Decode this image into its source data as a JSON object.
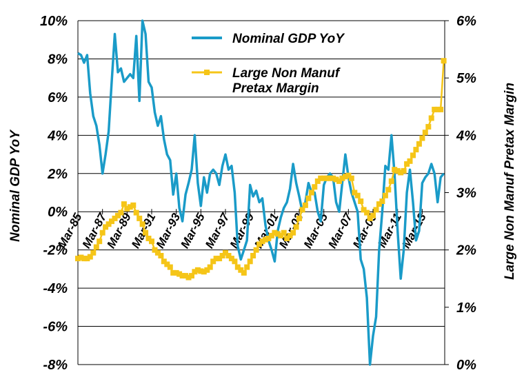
{
  "chart_data": {
    "type": "line",
    "xlabel": "",
    "ylabel_left": "Nominal GDP YoY",
    "ylabel_right": "Large Non Manuf Pretax Margin",
    "ylim_left": [
      -8,
      10
    ],
    "ylim_right": [
      0,
      6
    ],
    "y_ticks_left": [
      "-8%",
      "-6%",
      "-4%",
      "-2%",
      "0%",
      "2%",
      "4%",
      "6%",
      "8%",
      "10%"
    ],
    "y_ticks_right": [
      "0%",
      "1%",
      "2%",
      "3%",
      "4%",
      "5%",
      "6%"
    ],
    "x_ticks": [
      "Mar-85",
      "Mar-87",
      "Mar-89",
      "Mar-91",
      "Mar-93",
      "Mar-95",
      "Mar-97",
      "Mar-99",
      "Mar-01",
      "Mar-03",
      "Mar-05",
      "Mar-07",
      "Mar-09",
      "Mar-11",
      "Mar-13"
    ],
    "x_range": [
      1985.17,
      2015.0
    ],
    "grid": "horizontal",
    "legend_position": "top-center",
    "series": [
      {
        "name": "Nominal GDP YoY",
        "axis": "left",
        "color": "#1a9bc8",
        "marker": "none",
        "x": [
          1985.17,
          1985.42,
          1985.67,
          1985.92,
          1986.17,
          1986.42,
          1986.67,
          1986.92,
          1987.17,
          1987.42,
          1987.67,
          1987.92,
          1988.17,
          1988.42,
          1988.67,
          1988.92,
          1989.17,
          1989.42,
          1989.67,
          1989.92,
          1990.17,
          1990.42,
          1990.67,
          1990.92,
          1991.17,
          1991.42,
          1991.67,
          1991.92,
          1992.17,
          1992.42,
          1992.67,
          1992.92,
          1993.17,
          1993.42,
          1993.67,
          1993.92,
          1994.17,
          1994.42,
          1994.67,
          1994.92,
          1995.17,
          1995.42,
          1995.67,
          1995.92,
          1996.17,
          1996.42,
          1996.67,
          1996.92,
          1997.17,
          1997.42,
          1997.67,
          1997.92,
          1998.17,
          1998.42,
          1998.67,
          1998.92,
          1999.17,
          1999.42,
          1999.67,
          1999.92,
          2000.17,
          2000.42,
          2000.67,
          2000.92,
          2001.17,
          2001.42,
          2001.67,
          2001.92,
          2002.17,
          2002.42,
          2002.67,
          2002.92,
          2003.17,
          2003.42,
          2003.67,
          2003.92,
          2004.17,
          2004.42,
          2004.67,
          2004.92,
          2005.17,
          2005.42,
          2005.67,
          2005.92,
          2006.17,
          2006.42,
          2006.67,
          2006.92,
          2007.17,
          2007.42,
          2007.67,
          2007.92,
          2008.17,
          2008.42,
          2008.67,
          2008.92,
          2009.17,
          2009.42,
          2009.67,
          2009.92,
          2010.17,
          2010.42,
          2010.67,
          2010.92,
          2011.17,
          2011.42,
          2011.67,
          2011.92,
          2012.17,
          2012.42,
          2012.67,
          2012.92,
          2013.17,
          2013.42,
          2013.67,
          2013.92,
          2014.17,
          2014.42,
          2014.67,
          2014.92
        ],
        "y": [
          8.3,
          8.2,
          7.8,
          8.2,
          6.2,
          5.0,
          4.5,
          3.5,
          2.0,
          3.0,
          4.2,
          6.8,
          9.3,
          7.3,
          7.5,
          6.8,
          7.0,
          7.2,
          7.0,
          9.2,
          5.8,
          10.0,
          9.3,
          6.8,
          6.5,
          5.2,
          4.5,
          5.0,
          3.8,
          3.0,
          2.7,
          0.9,
          2.0,
          0.2,
          -0.5,
          0.9,
          1.5,
          2.2,
          4.0,
          1.5,
          0.3,
          1.8,
          1.0,
          2.0,
          2.2,
          2.0,
          1.4,
          2.4,
          3.0,
          2.2,
          2.4,
          1.0,
          -1.8,
          -2.5,
          -2.0,
          -1.5,
          1.4,
          0.8,
          1.1,
          0.5,
          0.7,
          -0.7,
          -1.5,
          -2.0,
          -2.6,
          -1.0,
          -0.3,
          0.2,
          0.5,
          1.2,
          2.5,
          1.5,
          0.8,
          0.0,
          0.5,
          1.5,
          1.0,
          1.0,
          0.0,
          -0.5,
          1.4,
          1.8,
          2.0,
          1.8,
          0.5,
          0.0,
          1.5,
          3.0,
          1.8,
          1.0,
          0.5,
          0.0,
          -2.5,
          -3.0,
          -4.5,
          -8.0,
          -6.5,
          -5.5,
          -2.0,
          0.0,
          2.4,
          2.2,
          4.0,
          2.0,
          -1.0,
          -3.5,
          -2.0,
          1.0,
          2.2,
          0.5,
          -1.5,
          -1.0,
          1.5,
          1.8,
          2.0,
          2.5,
          2.0,
          0.5,
          1.8,
          2.0
        ]
      },
      {
        "name": "Large Non Manuf Pretax Margin",
        "axis": "right",
        "color": "#f5c518",
        "marker": "square",
        "x": [
          1985.17,
          1985.42,
          1985.67,
          1985.92,
          1986.17,
          1986.42,
          1986.67,
          1986.92,
          1987.17,
          1987.42,
          1987.67,
          1987.92,
          1988.17,
          1988.42,
          1988.67,
          1988.92,
          1989.17,
          1989.42,
          1989.67,
          1989.92,
          1990.17,
          1990.42,
          1990.67,
          1990.92,
          1991.17,
          1991.42,
          1991.67,
          1991.92,
          1992.17,
          1992.42,
          1992.67,
          1992.92,
          1993.17,
          1993.42,
          1993.67,
          1993.92,
          1994.17,
          1994.42,
          1994.67,
          1994.92,
          1995.17,
          1995.42,
          1995.67,
          1995.92,
          1996.17,
          1996.42,
          1996.67,
          1996.92,
          1997.17,
          1997.42,
          1997.67,
          1997.92,
          1998.17,
          1998.42,
          1998.67,
          1998.92,
          1999.17,
          1999.42,
          1999.67,
          1999.92,
          2000.17,
          2000.42,
          2000.67,
          2000.92,
          2001.17,
          2001.42,
          2001.67,
          2001.92,
          2002.17,
          2002.42,
          2002.67,
          2002.92,
          2003.17,
          2003.42,
          2003.67,
          2003.92,
          2004.17,
          2004.42,
          2004.67,
          2004.92,
          2005.17,
          2005.42,
          2005.67,
          2005.92,
          2006.17,
          2006.42,
          2006.67,
          2006.92,
          2007.17,
          2007.42,
          2007.67,
          2007.92,
          2008.17,
          2008.42,
          2008.67,
          2008.92,
          2009.17,
          2009.42,
          2009.67,
          2009.92,
          2010.17,
          2010.42,
          2010.67,
          2010.92,
          2011.17,
          2011.42,
          2011.67,
          2011.92,
          2012.17,
          2012.42,
          2012.67,
          2012.92,
          2013.17,
          2013.42,
          2013.67,
          2013.92,
          2014.17,
          2014.42,
          2014.67,
          2014.92
        ],
        "y": [
          1.85,
          1.87,
          1.85,
          1.85,
          1.88,
          1.95,
          2.05,
          2.15,
          2.3,
          2.4,
          2.45,
          2.5,
          2.55,
          2.6,
          2.65,
          2.8,
          2.72,
          2.75,
          2.78,
          2.65,
          2.55,
          2.45,
          2.3,
          2.2,
          2.15,
          2.0,
          1.95,
          1.9,
          1.8,
          1.75,
          1.7,
          1.6,
          1.6,
          1.58,
          1.55,
          1.55,
          1.52,
          1.55,
          1.62,
          1.65,
          1.63,
          1.62,
          1.65,
          1.7,
          1.8,
          1.85,
          1.85,
          1.9,
          1.95,
          1.9,
          1.85,
          1.8,
          1.7,
          1.65,
          1.6,
          1.7,
          1.8,
          1.9,
          2.0,
          2.1,
          2.15,
          2.18,
          2.2,
          2.25,
          2.3,
          2.28,
          2.25,
          2.3,
          2.2,
          2.25,
          2.3,
          2.4,
          2.55,
          2.7,
          2.78,
          2.9,
          3.0,
          3.1,
          3.2,
          3.25,
          3.25,
          3.25,
          3.25,
          3.25,
          3.23,
          3.2,
          3.25,
          3.28,
          3.3,
          3.25,
          3.0,
          2.95,
          2.85,
          2.7,
          2.65,
          2.55,
          2.6,
          2.7,
          2.8,
          2.85,
          2.95,
          3.05,
          3.2,
          3.4,
          3.38,
          3.35,
          3.38,
          3.5,
          3.55,
          3.65,
          3.75,
          3.85,
          3.95,
          4.05,
          4.15,
          4.3,
          4.45,
          4.45,
          4.45,
          5.3
        ]
      }
    ]
  }
}
